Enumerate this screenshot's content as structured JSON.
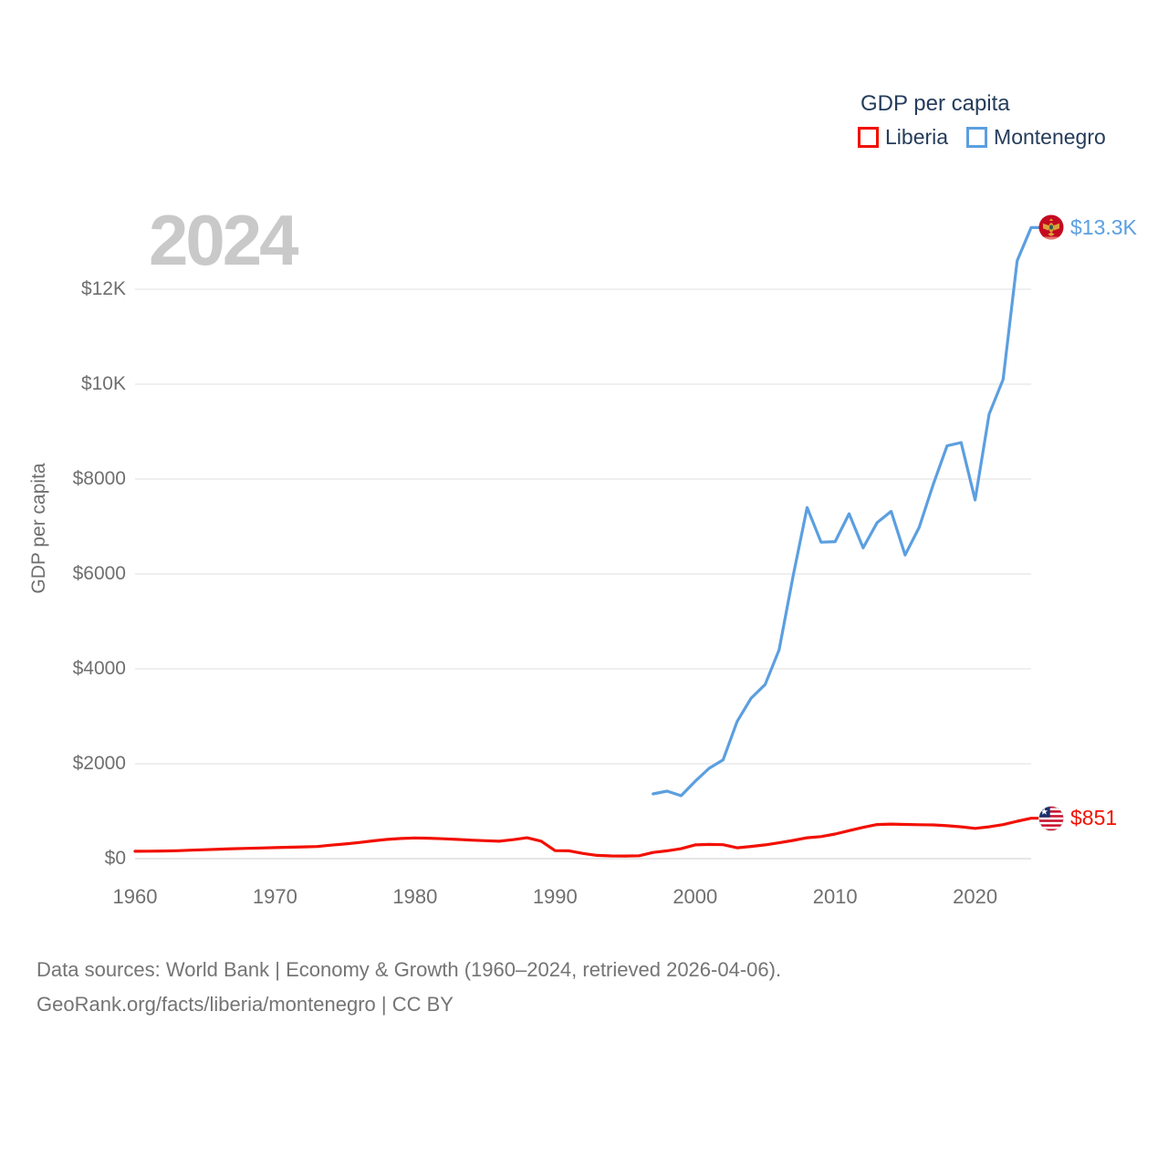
{
  "legend": {
    "title": "GDP per capita",
    "items": [
      {
        "label": "Liberia",
        "color": "#f21000"
      },
      {
        "label": "Montenegro",
        "color": "#5b9fe0"
      }
    ]
  },
  "watermark": "2024",
  "y_axis": {
    "title": "GDP per capita",
    "tick_labels": [
      "$0",
      "$2000",
      "$4000",
      "$6000",
      "$8000",
      "$10K",
      "$12K"
    ]
  },
  "x_axis": {
    "tick_labels": [
      "1960",
      "1970",
      "1980",
      "1990",
      "2000",
      "2010",
      "2020"
    ]
  },
  "footer": {
    "line1": "Data sources: World Bank | Economy & Growth (1960–2024, retrieved 2026-04-06).",
    "line2": "GeoRank.org/facts/liberia/montenegro | CC BY"
  },
  "chart_data": {
    "type": "line",
    "title": "GDP per capita",
    "xlabel": "",
    "ylabel": "GDP per capita",
    "x_range": [
      1960,
      2024
    ],
    "ylim": [
      0,
      13300
    ],
    "y_ticks": [
      0,
      2000,
      4000,
      6000,
      8000,
      10000,
      12000
    ],
    "x_ticks": [
      1960,
      1970,
      1980,
      1990,
      2000,
      2010,
      2020
    ],
    "grid": "horizontal",
    "legend_position": "top-right",
    "series": [
      {
        "name": "Liberia",
        "color": "#f21000",
        "start_year": 1960,
        "end_label": "$851",
        "flag": "liberia-flag",
        "values": [
          155,
          158,
          162,
          168,
          178,
          188,
          200,
          210,
          218,
          225,
          232,
          240,
          248,
          255,
          285,
          310,
          340,
          375,
          405,
          425,
          437,
          430,
          420,
          405,
          390,
          378,
          368,
          400,
          440,
          370,
          170,
          165,
          110,
          70,
          58,
          55,
          62,
          130,
          165,
          210,
          290,
          300,
          295,
          228,
          258,
          290,
          335,
          385,
          440,
          465,
          520,
          590,
          660,
          720,
          728,
          722,
          716,
          712,
          695,
          672,
          638,
          672,
          718,
          788,
          851
        ]
      },
      {
        "name": "Montenegro",
        "color": "#5b9fe0",
        "start_year": 1997,
        "end_label": "$13.3K",
        "flag": "montenegro-flag",
        "values": [
          1365,
          1423,
          1327,
          1630,
          1904,
          2080,
          2890,
          3380,
          3670,
          4400,
          5960,
          7400,
          6670,
          6680,
          7270,
          6550,
          7080,
          7320,
          6400,
          6980,
          7880,
          8700,
          8770,
          7560,
          9370,
          10100,
          12600,
          13300
        ]
      }
    ]
  }
}
